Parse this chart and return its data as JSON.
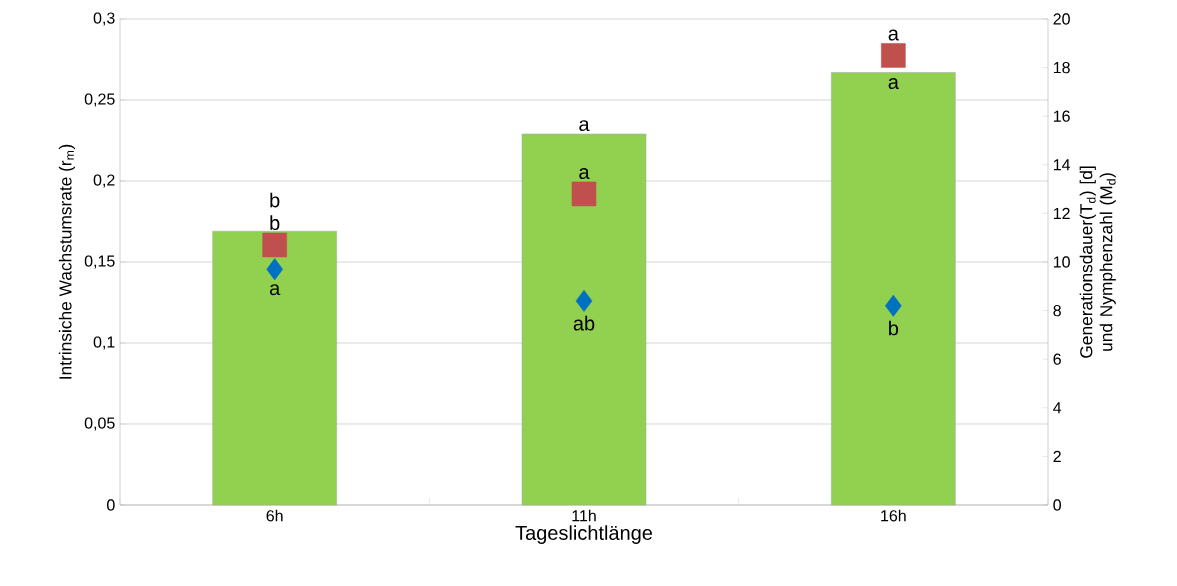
{
  "chart_data": {
    "type": "bar",
    "xlabel": "Tageslichtlänge",
    "ylabel": "Intrinsiche Wachstumsrate (r$_{m}$)",
    "y2label": "Generationsdauer(T$_{d}$) [d] und Nymphenzahl (M$_{d}$)",
    "categories": [
      "6h",
      "11h",
      "16h"
    ],
    "series": [
      {
        "color": "#92d050",
        "values": [
          0.169,
          0.229,
          0.267
        ],
        "value_labels": [
          "b",
          "a",
          "a"
        ]
      },
      {
        "type": "scatter",
        "axis": "y2",
        "marker": "square",
        "color": "#c0504d",
        "values": [
          10.7,
          12.8,
          18.5
        ],
        "value_labels": [
          "b",
          "a",
          "a"
        ]
      },
      {
        "type": "scatter",
        "axis": "y2",
        "marker": "diamond",
        "color": "#0070c0",
        "values": [
          9.7,
          8.4,
          8.2
        ],
        "value_labels": [
          "a",
          "ab",
          "b"
        ]
      }
    ],
    "ylim": [
      0,
      0.3
    ],
    "yticks": [
      0,
      {
        "value": 0.05,
        "label": "0,05"
      },
      {
        "value": 0.1,
        "label": "0,1"
      },
      {
        "value": 0.15,
        "label": "0,15"
      },
      {
        "value": 0.2,
        "label": "0,2"
      },
      {
        "value": 0.25,
        "label": "0,25"
      },
      {
        "value": 0.3,
        "label": "0,3"
      }
    ],
    "y2lim": [
      0,
      20
    ],
    "y2ticks": [
      0,
      2,
      4,
      6,
      8,
      10,
      12,
      14,
      16,
      18,
      20
    ],
    "grid": "y"
  }
}
